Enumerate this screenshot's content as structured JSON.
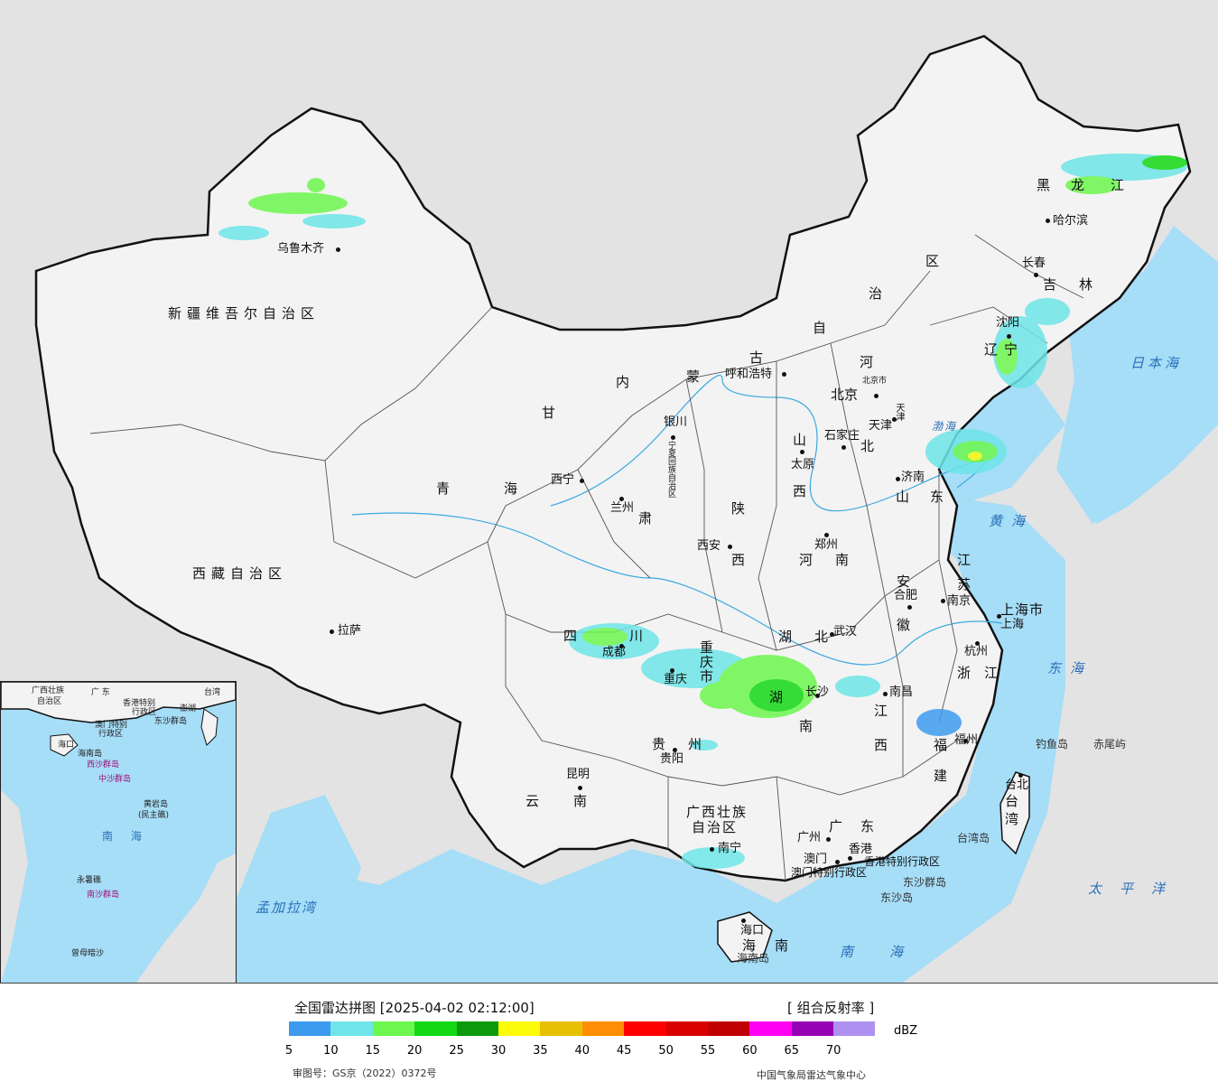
{
  "legend": {
    "title": "全国雷达拼图 [2025-04-02 02:12:00]",
    "product": "[ 组合反射率 ]",
    "unit": "dBZ",
    "ticks": [
      "5",
      "10",
      "15",
      "20",
      "25",
      "30",
      "35",
      "40",
      "45",
      "50",
      "55",
      "60",
      "65",
      "70"
    ],
    "colors": [
      "#3c9bef",
      "#6ee5e8",
      "#6df74e",
      "#13d914",
      "#0c9a0c",
      "#fbfb0b",
      "#e8c003",
      "#ff8e04",
      "#ff0000",
      "#d90000",
      "#c00000",
      "#ff00f2",
      "#9601b3",
      "#ad90f0"
    ],
    "approval": "审图号：GS京（2022）0372号",
    "source": "中国气象局雷达气象中心"
  },
  "map": {
    "provinces": [
      "新疆维吾尔自治区",
      "西藏自治区",
      "青",
      "海",
      "甘",
      "肃",
      "内",
      "蒙",
      "古",
      "自",
      "治",
      "区",
      "黑",
      "龙",
      "江",
      "吉",
      "林",
      "辽",
      "宁",
      "河",
      "北",
      "山",
      "西",
      "陕",
      "西",
      "河",
      "南",
      "山",
      "东",
      "江",
      "苏",
      "安",
      "徽",
      "浙",
      "江",
      "湖",
      "北",
      "湖",
      "南",
      "江",
      "西",
      "福",
      "建",
      "四",
      "川",
      "重",
      "庆",
      "市",
      "贵",
      "州",
      "云",
      "南",
      "广西壮族",
      "自治区",
      "广",
      "东",
      "海",
      "南",
      "上海市",
      "台",
      "湾",
      "宁夏回族自治区",
      "北京市",
      "天津"
    ],
    "cities": [
      "乌鲁木齐",
      "拉萨",
      "西宁",
      "兰州",
      "银川",
      "呼和浩特",
      "北京",
      "天津",
      "石家庄",
      "太原",
      "济南",
      "郑州",
      "西安",
      "成都",
      "重庆",
      "武汉",
      "长沙",
      "南昌",
      "合肥",
      "南京",
      "上海",
      "杭州",
      "福州",
      "台北",
      "贵阳",
      "昆明",
      "南宁",
      "广州",
      "澳门",
      "香港",
      "海口",
      "沈阳",
      "长春",
      "哈尔滨"
    ],
    "seas": [
      "黄海",
      "东海",
      "南海",
      "太平洋",
      "日本海",
      "渤海",
      "孟加拉湾"
    ],
    "islands": [
      "钓鱼岛",
      "赤尾屿",
      "东沙群岛",
      "东沙岛",
      "台湾岛",
      "海南岛",
      "香港特别行政区",
      "澳门特别行政区"
    ],
    "inset": [
      "广西壮族",
      "自治区",
      "广 东",
      "香港特别",
      "行政区",
      "澳门特别",
      "行政区",
      "东沙群岛",
      "海口",
      "海南岛",
      "西沙群岛",
      "中沙群岛",
      "黄岩岛",
      "(民主礁)",
      "南 海",
      "永暑礁",
      "南沙群岛",
      "曾母暗沙",
      "台湾",
      "澎湖"
    ]
  }
}
